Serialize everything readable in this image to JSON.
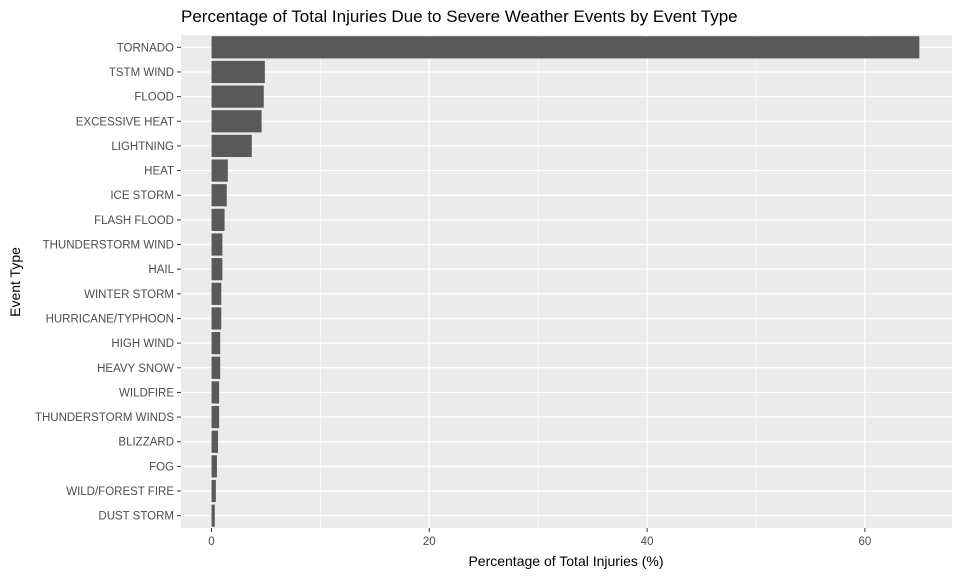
{
  "chart_data": {
    "type": "bar",
    "orientation": "horizontal",
    "title": "Percentage of Total Injuries Due to Severe Weather Events by Event Type",
    "xlabel": "Percentage of Total Injuries (%)",
    "ylabel": "Event Type",
    "categories": [
      "TORNADO",
      "TSTM WIND",
      "FLOOD",
      "EXCESSIVE HEAT",
      "LIGHTNING",
      "HEAT",
      "ICE STORM",
      "FLASH FLOOD",
      "THUNDERSTORM WIND",
      "HAIL",
      "WINTER STORM",
      "HURRICANE/TYPHOON",
      "HIGH WIND",
      "HEAVY SNOW",
      "WILDFIRE",
      "THUNDERSTORM WINDS",
      "BLIZZARD",
      "FOG",
      "WILD/FOREST FIRE",
      "DUST STORM"
    ],
    "values": [
      65.0,
      4.9,
      4.8,
      4.6,
      3.7,
      1.5,
      1.4,
      1.2,
      1.0,
      1.0,
      0.9,
      0.9,
      0.8,
      0.8,
      0.7,
      0.7,
      0.6,
      0.5,
      0.4,
      0.3
    ],
    "xlim": [
      -2.8,
      68.0
    ],
    "xticks": [
      0,
      20,
      40,
      60
    ],
    "grid": true,
    "legend": "none",
    "colors": {
      "bar": "#595959",
      "panel": "#ebebeb",
      "grid_major": "#ffffff",
      "text": "#4d4d4d"
    }
  }
}
